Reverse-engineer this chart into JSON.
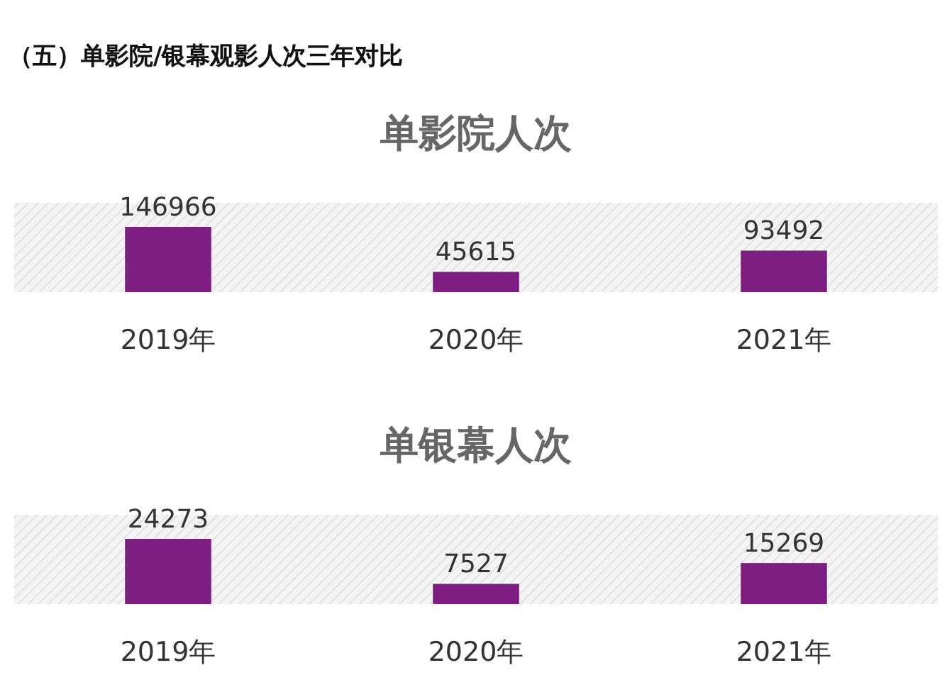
{
  "chart_data": [
    {
      "type": "bar",
      "title": "单影院人次",
      "annotations": [
        "（五）单影院/银幕观影人次三年对比"
      ],
      "categories": [
        "2019年",
        "2020年",
        "2021年"
      ],
      "values": [
        146966,
        45615,
        93492
      ],
      "color": "#7e1e80",
      "data_labels": true
    },
    {
      "type": "bar",
      "title": "单银幕人次",
      "categories": [
        "2019年",
        "2020年",
        "2021年"
      ],
      "values": [
        24273,
        7527,
        15269
      ],
      "color": "#7e1e80",
      "data_labels": true
    }
  ]
}
